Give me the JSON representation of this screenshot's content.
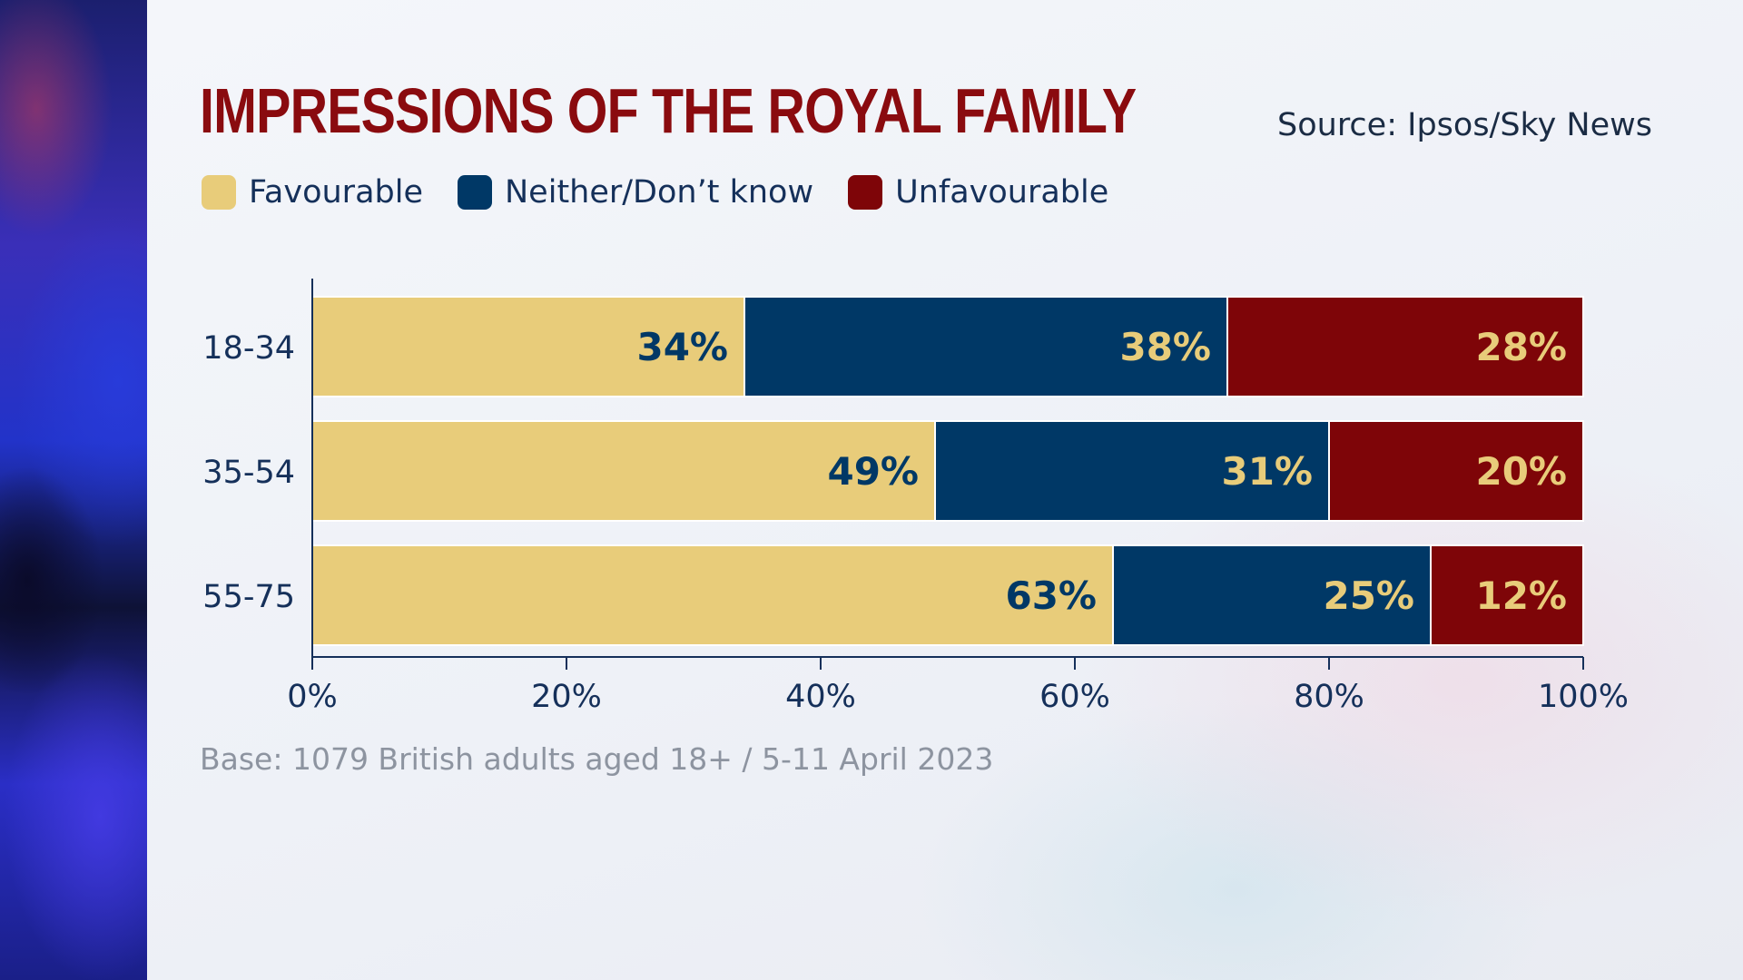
{
  "title": "IMPRESSIONS OF THE ROYAL FAMILY",
  "source": "Source: Ipsos/Sky News",
  "base_note": "Base: 1079 British adults aged 18+ / 5-11 April 2023",
  "colors": {
    "favourable": "#e8cc7a",
    "neither": "#003866",
    "unfavourable": "#7e0508",
    "axis": "#15305a"
  },
  "legend": [
    {
      "label": "Favourable",
      "color": "#e8cc7a"
    },
    {
      "label": "Neither/Don’t know",
      "color": "#003866"
    },
    {
      "label": "Unfavourable",
      "color": "#7e0508"
    }
  ],
  "chart_data": {
    "type": "bar",
    "orientation": "horizontal",
    "stacked": true,
    "categories": [
      "18-34",
      "35-54",
      "55-75"
    ],
    "series": [
      {
        "name": "Favourable",
        "values": [
          34,
          49,
          63
        ],
        "labels": [
          "34%",
          "49%",
          "63%"
        ],
        "color": "#e8cc7a",
        "label_color": "#003866"
      },
      {
        "name": "Neither/Don’t know",
        "values": [
          38,
          31,
          25
        ],
        "labels": [
          "38%",
          "31%",
          "25%"
        ],
        "color": "#003866",
        "label_color": "#e8cc7a"
      },
      {
        "name": "Unfavourable",
        "values": [
          28,
          20,
          12
        ],
        "labels": [
          "28%",
          "20%",
          "12%"
        ],
        "color": "#7e0508",
        "label_color": "#e8cc7a"
      }
    ],
    "xlim": [
      0,
      100
    ],
    "x_ticks": [
      0,
      20,
      40,
      60,
      80,
      100
    ],
    "x_tick_labels": [
      "0%",
      "20%",
      "40%",
      "60%",
      "80%",
      "100%"
    ],
    "grid": false,
    "legend_position": "top-left"
  }
}
